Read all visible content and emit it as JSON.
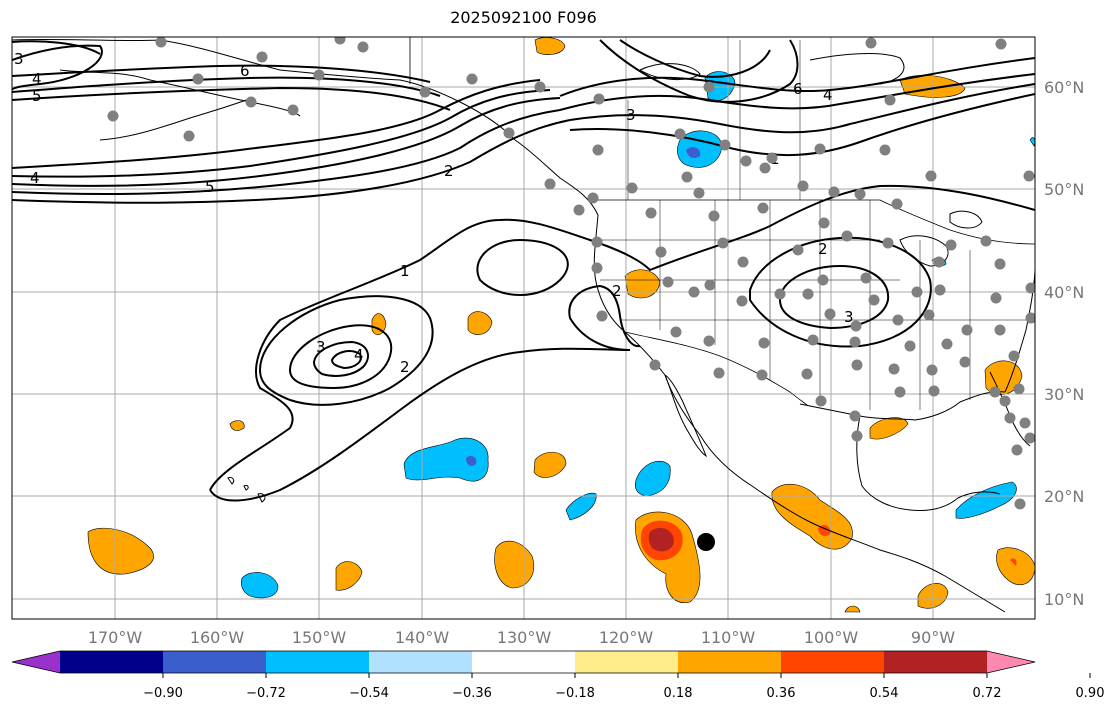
{
  "title": "2025092100 F096",
  "latitude_labels": [
    "60°N",
    "50°N",
    "40°N",
    "30°N",
    "20°N",
    "10°N"
  ],
  "longitude_labels": [
    "170°W",
    "160°W",
    "150°W",
    "140°W",
    "130°W",
    "120°W",
    "110°W",
    "100°W",
    "90°W"
  ],
  "colorbar": {
    "ticks": [
      "−0.90",
      "−0.72",
      "−0.54",
      "−0.36",
      "−0.18",
      "0.18",
      "0.36",
      "0.54",
      "0.72",
      "0.90"
    ],
    "colors": [
      "#9932cc",
      "#00008b",
      "#3a5fcd",
      "#00bfff",
      "#b0e2ff",
      "#ffffff",
      "#ffec8b",
      "#ffa500",
      "#ff4500",
      "#b22222",
      "#ff88b0"
    ]
  },
  "contour_labels": [
    "3",
    "4",
    "5",
    "6",
    "4",
    "5",
    "2",
    "3",
    "6",
    "4",
    "1",
    "1",
    "2",
    "2",
    "3",
    "4",
    "2",
    "2",
    "2",
    "3"
  ],
  "colors": {
    "orange": "#ffa500",
    "red_orange": "#ff4500",
    "dark_red": "#b22222",
    "deep_sky_blue": "#00bfff",
    "royal_blue": "#3a5fcd",
    "grid": "#aaaaaa",
    "station": "#808080"
  }
}
